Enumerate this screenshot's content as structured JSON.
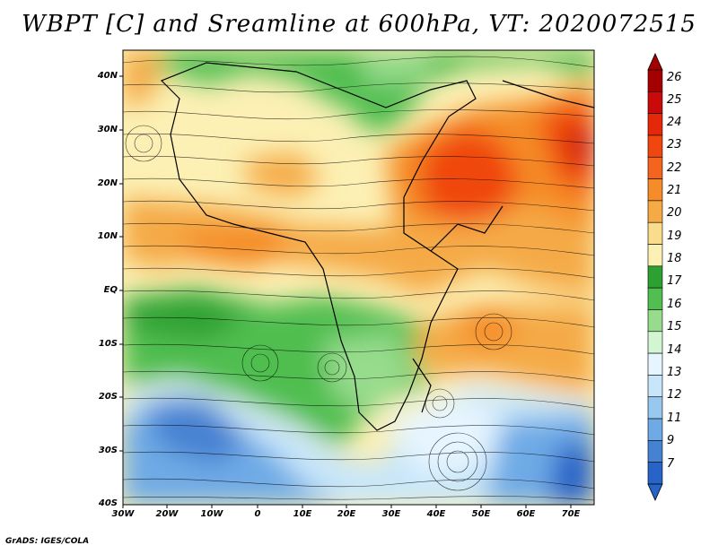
{
  "title": "WBPT [C] and Sreamline at 600hPa, VT: 2020072515",
  "footer": "GrADS: IGES/COLA",
  "map": {
    "variable": "WBPT",
    "units": "C",
    "level": "600hPa",
    "valid_time": "2020072515",
    "lat_labels": [
      "40N",
      "30N",
      "20N",
      "10N",
      "EQ",
      "10S",
      "20S",
      "30S",
      "40S"
    ],
    "lon_labels": [
      "30W",
      "20W",
      "10W",
      "0",
      "10E",
      "20E",
      "30E",
      "40E",
      "50E",
      "60E",
      "70E"
    ]
  },
  "colorbar": {
    "labels": [
      "26",
      "25",
      "24",
      "23",
      "22",
      "21",
      "20",
      "19",
      "18",
      "17",
      "16",
      "15",
      "14",
      "13",
      "12",
      "11",
      "9",
      "7"
    ],
    "colors": [
      "#a50000",
      "#c80a0a",
      "#e6280a",
      "#f0460f",
      "#f5641e",
      "#f58c28",
      "#f5aa46",
      "#f9dc8c",
      "#fcf0b4",
      "#2da032",
      "#50be50",
      "#96dc8c",
      "#d2f5d2",
      "#e6f5ff",
      "#c8e6fa",
      "#96c8f0",
      "#6eaae6",
      "#4682d2",
      "#2864c8"
    ]
  }
}
